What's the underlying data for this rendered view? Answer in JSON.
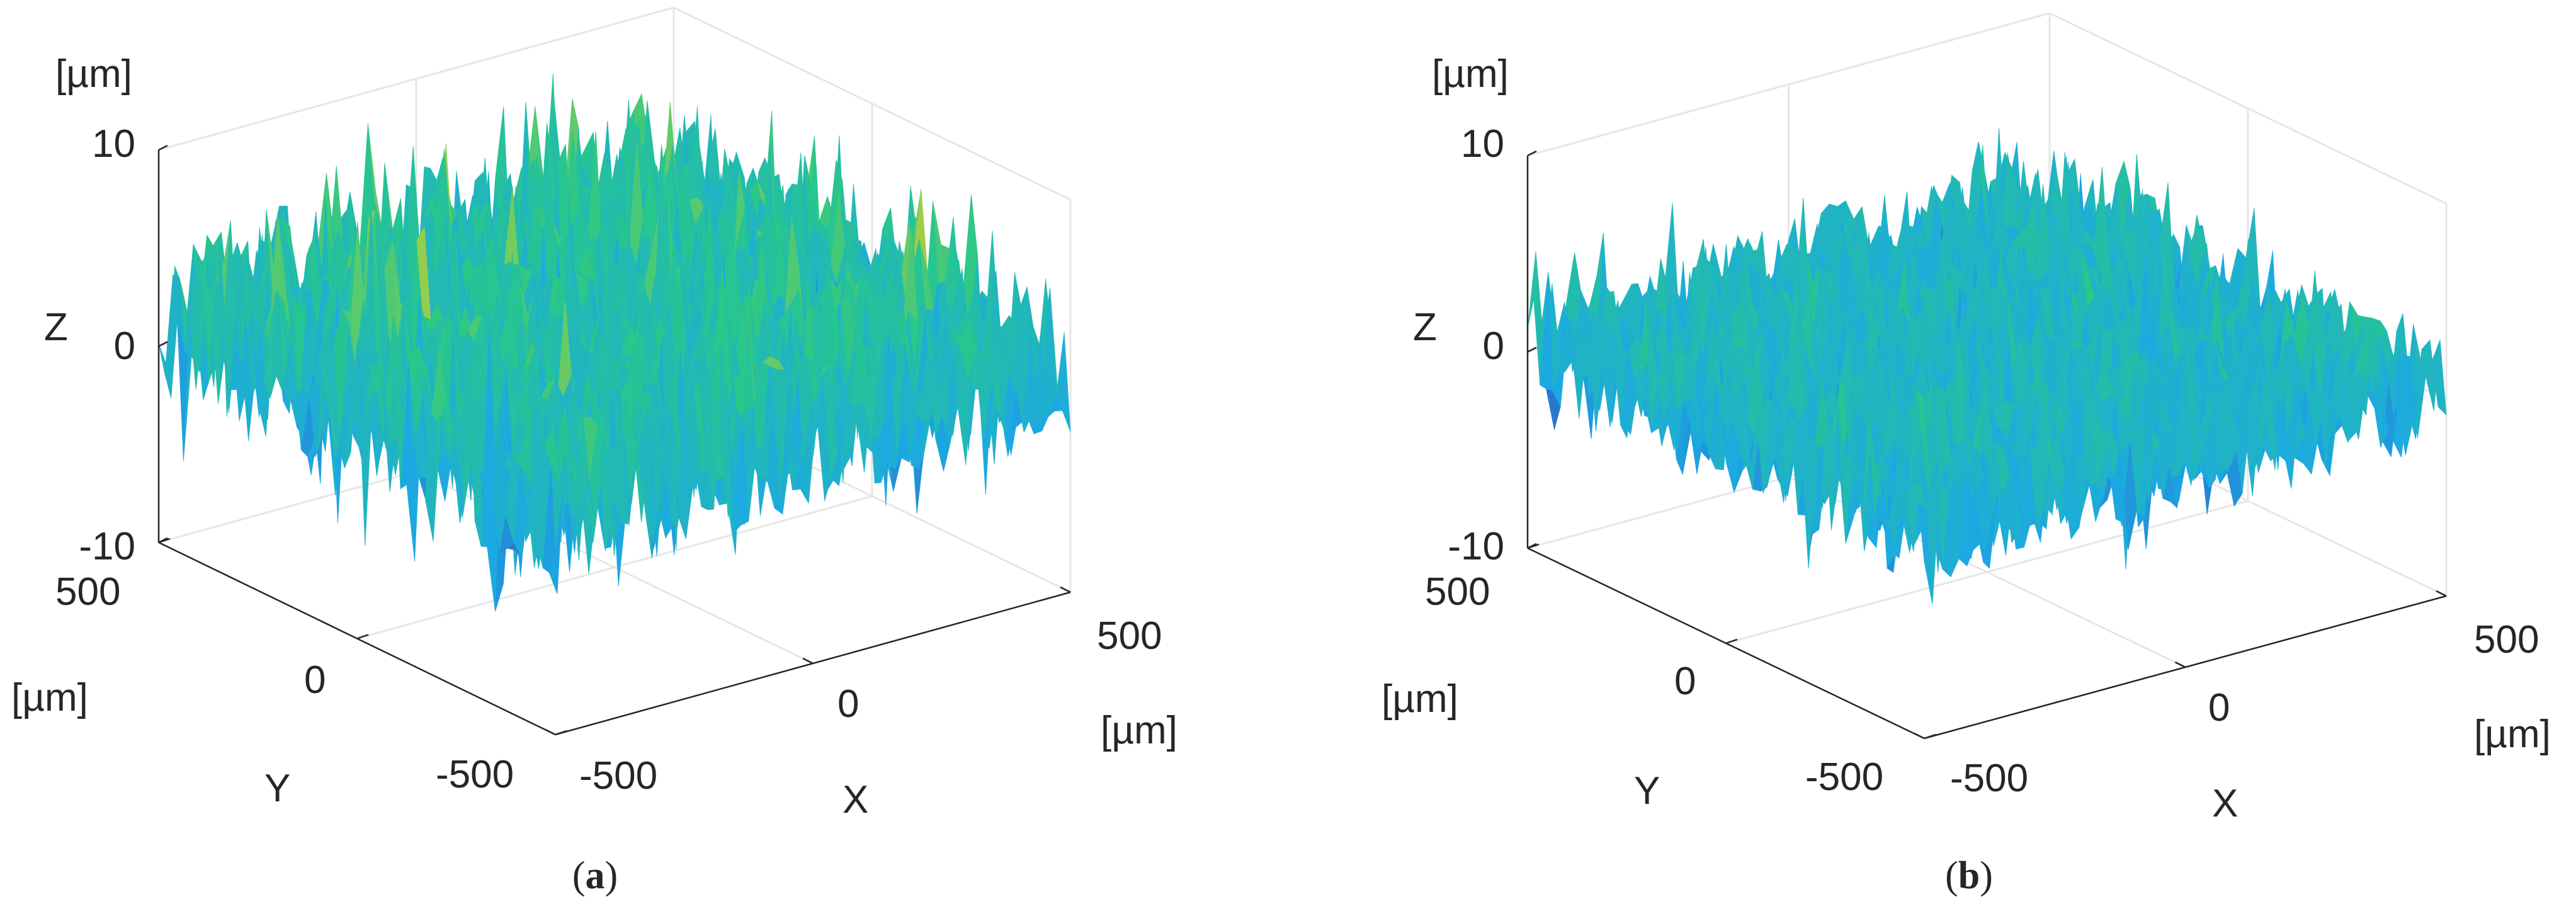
{
  "chart_data": [
    {
      "type": "surface",
      "panel_label": "a",
      "caption_open": "(",
      "caption_close": ")",
      "xlabel": "X",
      "ylabel": "Y",
      "zlabel": "Z",
      "x_unit": "[µm]",
      "y_unit": "[µm]",
      "z_unit": "[µm]",
      "xlim": [
        -500,
        500
      ],
      "ylim": [
        -500,
        500
      ],
      "zlim": [
        -10,
        10
      ],
      "x_ticks": [
        "-500",
        "0",
        "500"
      ],
      "y_ticks": [
        "-500",
        "0",
        "500"
      ],
      "z_ticks": [
        "-10",
        "0",
        "10"
      ],
      "grid": true,
      "colormap": "parula",
      "height_mean": 1.5,
      "height_amplitude": 8,
      "colors": {
        "low": "#3d26a8",
        "mid_low": "#1ca9e3",
        "mid": "#28c78a",
        "high": "#f5d216"
      }
    },
    {
      "type": "surface",
      "panel_label": "b",
      "caption_open": "(",
      "caption_close": ")",
      "xlabel": "X",
      "ylabel": "Y",
      "zlabel": "Z",
      "x_unit": "[µm]",
      "y_unit": "[µm]",
      "z_unit": "[µm]",
      "xlim": [
        -500,
        500
      ],
      "ylim": [
        -500,
        500
      ],
      "zlim": [
        -10,
        10
      ],
      "x_ticks": [
        "-500",
        "0",
        "500"
      ],
      "y_ticks": [
        "-500",
        "0",
        "500"
      ],
      "z_ticks": [
        "-10",
        "0",
        "10"
      ],
      "grid": true,
      "colormap": "parula",
      "height_mean": 0.5,
      "height_amplitude": 6,
      "colors": {
        "low": "#3d26a8",
        "mid_low": "#1ca9e3",
        "mid": "#28c78a",
        "high": "#f5d216"
      }
    }
  ]
}
